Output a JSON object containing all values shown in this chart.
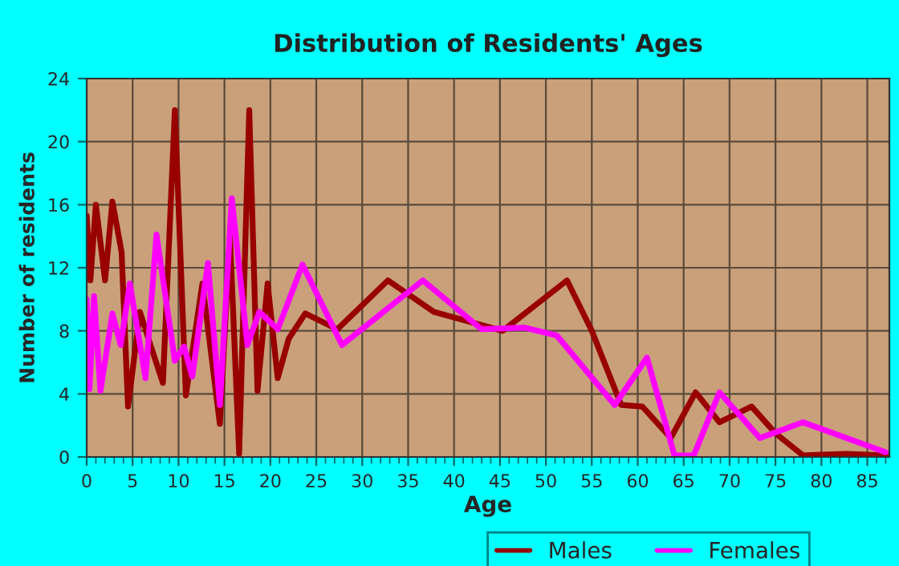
{
  "chart_data": {
    "type": "line",
    "title": "Distribution of Residents' Ages",
    "xlabel": "Age",
    "ylabel": "Number of residents",
    "xlim": [
      0,
      87.4
    ],
    "xticks": [
      0,
      5,
      10,
      15,
      20,
      25,
      30,
      35,
      40,
      45,
      50,
      55,
      60,
      65,
      70,
      75,
      80,
      85
    ],
    "ylim": [
      0,
      24
    ],
    "yticks": [
      0,
      4,
      8,
      12,
      16,
      20,
      24
    ],
    "grid": true,
    "legend": "bottom",
    "marker": "none",
    "line_style": "solid",
    "series": [
      {
        "name": "Males",
        "color": "#990000",
        "x": [
          0,
          0.4,
          1,
          2,
          2.8,
          3.8,
          4.5,
          5.8,
          7,
          8.3,
          9.6,
          10.8,
          12.6,
          14.5,
          15.6,
          16.6,
          17.7,
          18.6,
          19.7,
          20.8,
          22,
          23.8,
          27.3,
          32.8,
          37.8,
          45.3,
          52.3,
          55,
          58.2,
          60.5,
          63.6,
          66.3,
          68.9,
          72.4,
          75,
          78,
          82.7,
          87
        ],
        "values": [
          15.3,
          11.2,
          16,
          11.2,
          16.2,
          13,
          3.2,
          9.2,
          7,
          4.7,
          22,
          3.9,
          11,
          2.1,
          14,
          0.2,
          22,
          4.2,
          11,
          5,
          7.5,
          9.1,
          8.1,
          11.2,
          9.2,
          8,
          11.2,
          8,
          3.3,
          3.2,
          1.2,
          4.1,
          2.2,
          3.2,
          1.5,
          0.1,
          0.2,
          0.1
        ]
      },
      {
        "name": "Females",
        "color": "#ff00ff",
        "x": [
          0,
          0.3,
          0.8,
          1.5,
          2.8,
          3.7,
          4.7,
          6.4,
          7.6,
          9.6,
          10.6,
          11.5,
          13.2,
          14.5,
          15.8,
          17.5,
          18.8,
          20.8,
          23.5,
          27.8,
          36.6,
          43,
          47.7,
          51.2,
          57.5,
          61,
          64,
          66.1,
          68.9,
          73.3,
          78,
          87
        ],
        "values": [
          10,
          4.3,
          10.2,
          4.2,
          9.1,
          7.1,
          11,
          5,
          14.1,
          6.1,
          7,
          5.1,
          12.3,
          3.3,
          16.4,
          7.1,
          9.2,
          8.1,
          12.2,
          7.1,
          11.2,
          8.1,
          8.2,
          7.7,
          3.3,
          6.3,
          0.1,
          0.1,
          4.1,
          1.2,
          2.2,
          0.3
        ]
      }
    ]
  }
}
